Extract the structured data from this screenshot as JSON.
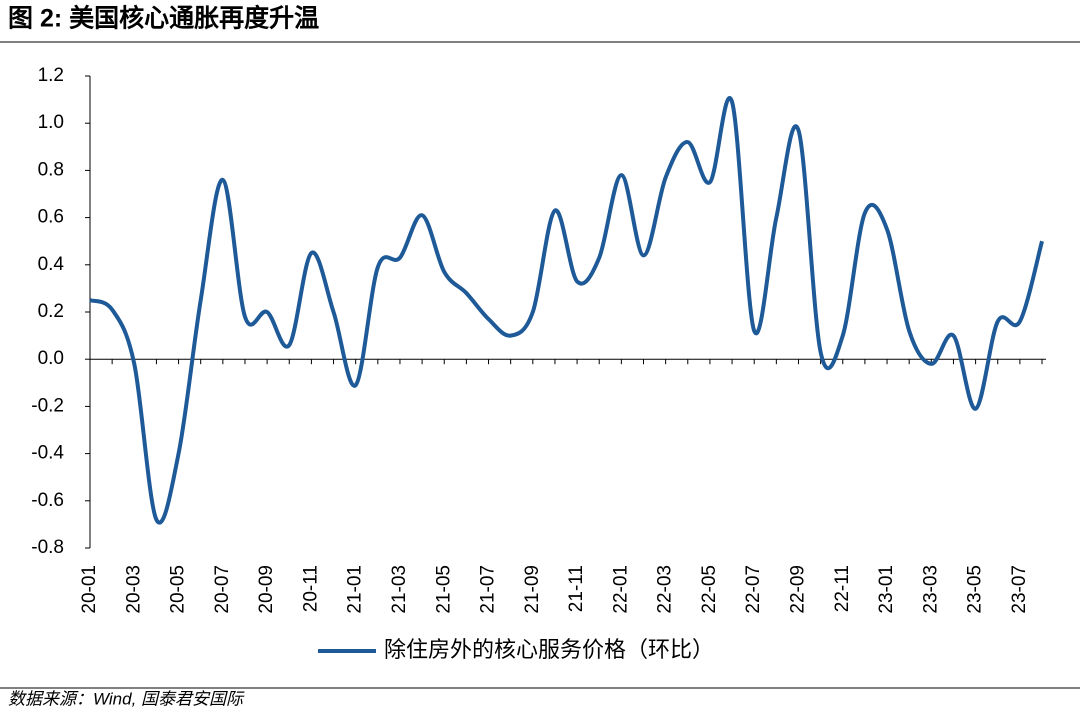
{
  "chart_data": {
    "type": "line",
    "title": "图 2:  美国核心通胀再度升温",
    "source": "数据来源：Wind, 国泰君安国际",
    "categories": [
      "20-01",
      null,
      "20-03",
      null,
      "20-05",
      null,
      "20-07",
      null,
      "20-09",
      null,
      "20-11",
      null,
      "21-01",
      null,
      "21-03",
      null,
      "21-05",
      null,
      "21-07",
      null,
      "21-09",
      null,
      "21-11",
      null,
      "22-01",
      null,
      "22-03",
      null,
      "22-05",
      null,
      "22-07",
      null,
      "22-09",
      null,
      "22-11",
      null,
      "23-01",
      null,
      "23-03",
      null,
      "23-05",
      null,
      "23-07",
      null
    ],
    "series": [
      {
        "name": "除住房外的核心服务价格（环比）",
        "color": "#1f5a98",
        "values": [
          0.25,
          0.21,
          -0.02,
          -0.68,
          -0.4,
          0.25,
          0.76,
          0.18,
          0.2,
          0.06,
          0.45,
          0.2,
          -0.11,
          0.39,
          0.43,
          0.61,
          0.37,
          0.28,
          0.17,
          0.1,
          0.2,
          0.63,
          0.33,
          0.43,
          0.78,
          0.44,
          0.77,
          0.92,
          0.75,
          1.09,
          0.12,
          0.6,
          0.97,
          0.03,
          0.1,
          0.62,
          0.55,
          0.12,
          -0.02,
          0.1,
          -0.21,
          0.16,
          0.16,
          0.5
        ]
      }
    ],
    "ylim": [
      -0.8,
      1.2
    ],
    "yticks": [
      1.2,
      {
        "value": 1.0,
        "label": "1.0"
      },
      0.8,
      0.6,
      0.4,
      0.2,
      {
        "value": 0.0,
        "label": "0.0"
      },
      -0.2,
      -0.4,
      -0.6,
      -0.8
    ],
    "legend": "bottom"
  }
}
